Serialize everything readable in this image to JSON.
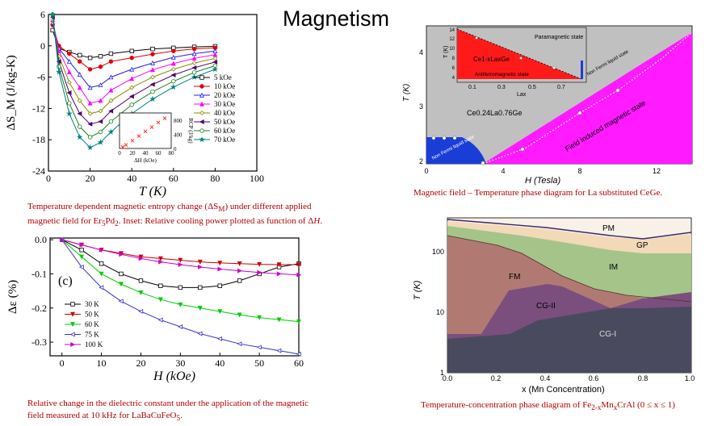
{
  "slide": {
    "title": "Magnetism"
  },
  "captions": {
    "entropy": [
      "Temperature dependent magnetic entropy change (ΔS",
      "M",
      ") under different applied",
      "magnetic field for Er",
      "5",
      "Pd",
      "2",
      ". Inset: Relative cooling power plotted as function of Δ",
      "H",
      "."
    ],
    "dielectric": [
      "Relative change in the dielectric constant under the application of the magnetic",
      "field measured at 10 kHz for LaBaCuFeO",
      "5",
      "."
    ],
    "phase_ce": [
      "Magnetic field – Temperature phase diagram for La substituted CeGe."
    ],
    "phase_fe": [
      "Temperature-concentration phase diagram of Fe",
      "2-x",
      "Mn",
      "x",
      "CrAl (0 ≤ x ≤ 1)"
    ]
  },
  "chart_data": [
    {
      "id": "entropy",
      "type": "line",
      "xlabel": "T (K)",
      "ylabel": "ΔS_M (J/kg-K)",
      "xlim": [
        0,
        100
      ],
      "ylim": [
        -24,
        6
      ],
      "xticks": [
        0,
        20,
        40,
        60,
        80,
        100
      ],
      "yticks": [
        6,
        0,
        -6,
        -12,
        -18,
        -24
      ],
      "legend": "right",
      "series": [
        {
          "name": "5 kOe",
          "color": "#000000",
          "marker": "square-open",
          "x": [
            2,
            5,
            10,
            15,
            20,
            25,
            30,
            40,
            50,
            60,
            70,
            80
          ],
          "y": [
            3,
            -0.5,
            -1.2,
            -1.8,
            -2.3,
            -2,
            -1.5,
            -1,
            -0.6,
            -0.4,
            -0.2,
            -0.1
          ]
        },
        {
          "name": "10 kOe",
          "color": "#e00000",
          "marker": "circle",
          "x": [
            2,
            5,
            10,
            15,
            20,
            25,
            30,
            40,
            50,
            60,
            70,
            80
          ],
          "y": [
            4,
            0,
            -1.5,
            -3,
            -4.5,
            -4,
            -3,
            -2.3,
            -1.6,
            -1,
            -0.6,
            -0.4
          ]
        },
        {
          "name": "20 kOe",
          "color": "#2020e0",
          "marker": "triangle-open",
          "x": [
            2,
            5,
            10,
            15,
            20,
            25,
            30,
            40,
            50,
            60,
            70,
            80
          ],
          "y": [
            4.5,
            -0.5,
            -3,
            -5.5,
            -8,
            -7.5,
            -6,
            -4.5,
            -3.3,
            -2.2,
            -1.5,
            -1
          ]
        },
        {
          "name": "30 kOe",
          "color": "#ff00ff",
          "marker": "triangle",
          "x": [
            2,
            5,
            10,
            15,
            20,
            25,
            30,
            40,
            50,
            60,
            70,
            80
          ],
          "y": [
            5,
            -1,
            -5,
            -8,
            -11,
            -10.5,
            -8.5,
            -6.3,
            -4.6,
            -3.4,
            -2.4,
            -1.7
          ]
        },
        {
          "name": "40 kOe",
          "color": "#8a8a00",
          "marker": "diamond-open",
          "x": [
            2,
            5,
            10,
            15,
            20,
            25,
            30,
            40,
            50,
            60,
            70,
            80
          ],
          "y": [
            5,
            -2,
            -7,
            -10.5,
            -13,
            -12.5,
            -10.5,
            -8,
            -6,
            -4.5,
            -3.3,
            -2.4
          ]
        },
        {
          "name": "50 kOe",
          "color": "#500070",
          "marker": "triangle-left",
          "x": [
            2,
            5,
            10,
            15,
            20,
            25,
            30,
            40,
            50,
            60,
            70,
            80
          ],
          "y": [
            5.5,
            -3,
            -9,
            -13,
            -15,
            -14.5,
            -12.5,
            -9.7,
            -7.4,
            -5.6,
            -4.2,
            -3.1
          ]
        },
        {
          "name": "60 kOe",
          "color": "#208020",
          "marker": "circle-open",
          "x": [
            2,
            5,
            10,
            15,
            20,
            25,
            30,
            40,
            50,
            60,
            70,
            80
          ],
          "y": [
            6,
            -4,
            -11,
            -15.5,
            -17.5,
            -16.5,
            -14.5,
            -11.3,
            -8.8,
            -6.8,
            -5.1,
            -3.8
          ]
        },
        {
          "name": "70 kOe",
          "color": "#008080",
          "marker": "star",
          "x": [
            2,
            5,
            10,
            15,
            20,
            25,
            30,
            40,
            50,
            60,
            70,
            80
          ],
          "y": [
            6,
            -5,
            -13,
            -17.5,
            -19.5,
            -18.5,
            -16.5,
            -13,
            -10.2,
            -7.9,
            -6,
            -4.5
          ]
        }
      ],
      "inset": {
        "type": "scatter",
        "xlabel": "ΔH (kOe)",
        "ylabel": "RCP (J/kg)",
        "xticks": [
          0,
          20,
          40,
          60,
          80
        ],
        "yticks": [
          0,
          400,
          800
        ],
        "xlim": [
          0,
          80
        ],
        "ylim": [
          0,
          1000
        ],
        "color": "#ff3333",
        "x": [
          5,
          10,
          20,
          30,
          40,
          50,
          60,
          70
        ],
        "y": [
          40,
          100,
          220,
          350,
          480,
          600,
          730,
          850
        ]
      }
    },
    {
      "id": "dielectric",
      "type": "line",
      "xlabel": "H (kOe)",
      "ylabel": "Δε (%)",
      "panel_label": "(c)",
      "xlim": [
        -3,
        60
      ],
      "ylim": [
        -0.34,
        0.005
      ],
      "xticks": [
        0,
        10,
        20,
        30,
        40,
        50,
        60
      ],
      "yticks": [
        0.0,
        -0.1,
        -0.2,
        -0.3
      ],
      "yticklabels": [
        "0.0",
        "-0.1",
        "-0.2",
        "-0.3"
      ],
      "legend": "bottom-left",
      "series": [
        {
          "name": "30 K",
          "color": "#000000",
          "marker": "square-open",
          "x": [
            0,
            5,
            10,
            15,
            20,
            25,
            30,
            35,
            40,
            45,
            50,
            55,
            60
          ],
          "y": [
            0,
            -0.03,
            -0.07,
            -0.1,
            -0.12,
            -0.135,
            -0.14,
            -0.14,
            -0.135,
            -0.12,
            -0.1,
            -0.08,
            -0.07
          ]
        },
        {
          "name": "50 K",
          "color": "#cc0000",
          "marker": "triangle-down",
          "x": [
            0,
            5,
            10,
            15,
            20,
            25,
            30,
            35,
            40,
            45,
            50,
            55,
            60
          ],
          "y": [
            0,
            -0.015,
            -0.03,
            -0.04,
            -0.05,
            -0.055,
            -0.06,
            -0.065,
            -0.068,
            -0.07,
            -0.072,
            -0.073,
            -0.073
          ]
        },
        {
          "name": "60 K",
          "color": "#00cc00",
          "marker": "triangle-down",
          "x": [
            0,
            5,
            10,
            15,
            20,
            25,
            30,
            35,
            40,
            45,
            50,
            55,
            60
          ],
          "y": [
            0,
            -0.05,
            -0.1,
            -0.13,
            -0.155,
            -0.175,
            -0.19,
            -0.2,
            -0.21,
            -0.22,
            -0.228,
            -0.234,
            -0.24
          ]
        },
        {
          "name": "75 K",
          "color": "#3333cc",
          "marker": "triangle-left-open",
          "x": [
            0,
            5,
            10,
            15,
            20,
            25,
            30,
            35,
            40,
            45,
            50,
            55,
            60
          ],
          "y": [
            0,
            -0.08,
            -0.14,
            -0.18,
            -0.21,
            -0.235,
            -0.255,
            -0.275,
            -0.29,
            -0.305,
            -0.315,
            -0.325,
            -0.335
          ]
        },
        {
          "name": "100 K",
          "color": "#cc00cc",
          "marker": "triangle-right",
          "x": [
            0,
            5,
            10,
            15,
            20,
            25,
            30,
            35,
            40,
            45,
            50,
            55,
            60
          ],
          "y": [
            0,
            -0.015,
            -0.03,
            -0.043,
            -0.055,
            -0.065,
            -0.073,
            -0.08,
            -0.086,
            -0.091,
            -0.096,
            -0.1,
            -0.103
          ]
        }
      ]
    }
  ],
  "phase_ce": {
    "xlabel": "H (Tesla)",
    "ylabel": "T (K)",
    "xticks": [
      "0",
      "4",
      "8",
      "12"
    ],
    "yticks": [
      "2",
      "3",
      "4"
    ],
    "labels": {
      "paramagnetic": "Paramagnetic state",
      "nfl_line": "Non Fermi liquid state",
      "compound": "Ce0.24La0.76Ge",
      "field_induced": "Field induced magnetic state",
      "nfl_corner": "Non Fermi liquid state"
    },
    "inset": {
      "compound": "Ce1-xLaxGe",
      "afm": "Antiferromagnetic state",
      "xlabel": "Lax",
      "ylabel": "T (K)",
      "xticks": [
        "0.1",
        "0.3",
        "0.5",
        "0.7"
      ],
      "yticks": [
        "4",
        "6",
        "8",
        "10",
        "12",
        "14"
      ]
    },
    "colors": {
      "background": "#c0c0c0",
      "field": "#ff00ff",
      "nfl": "#1a3dd8",
      "afm": "#ff1a1a"
    }
  },
  "phase_fe": {
    "xlabel": "x (Mn Concentration)",
    "ylabel": "T (K)",
    "xticks": [
      "0.0",
      "0.2",
      "0.4",
      "0.6",
      "0.8",
      "1.0"
    ],
    "yticks": [
      "100",
      "10",
      "1"
    ],
    "regions": [
      "PM",
      "GP",
      "IM",
      "FM",
      "CG-II",
      "CG-I"
    ],
    "colors": {
      "PM": "#f7f1e8",
      "GP": "#f2d9b8",
      "IM": "#a4c48a",
      "FM": "#b07a72",
      "CGII": "#7a4f7e",
      "CGI": "#4a4a5e"
    }
  }
}
